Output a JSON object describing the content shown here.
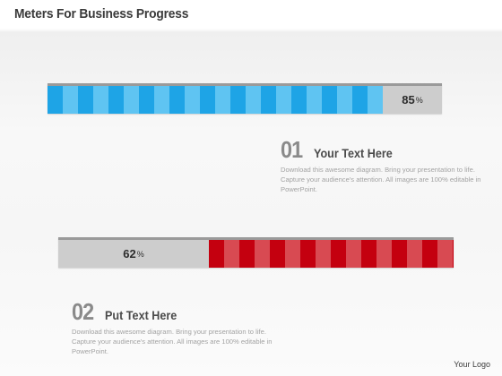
{
  "title": "Meters For Business Progress",
  "meters": [
    {
      "value": 85,
      "number_label": "85",
      "symbol": "%",
      "fill_color": "#1ea4e6",
      "stripe_color": "#5fc4f2",
      "track_color": "#cdcdcd"
    },
    {
      "value": 62,
      "number_label": "62",
      "symbol": "%",
      "fill_color": "#c4000f",
      "stripe_color": "#d84a52",
      "track_color": "#cdcdcd"
    }
  ],
  "items": [
    {
      "number": "01",
      "heading": "Your Text Here",
      "text": "Download this awesome diagram. Bring your presentation to life. Capture your audience's attention. All images are 100% editable in PowerPoint."
    },
    {
      "number": "02",
      "heading": "Put Text Here",
      "text": "Download this awesome diagram. Bring your presentation to life. Capture your audience's attention. All images are 100% editable in PowerPoint."
    }
  ],
  "logo": "Your Logo"
}
